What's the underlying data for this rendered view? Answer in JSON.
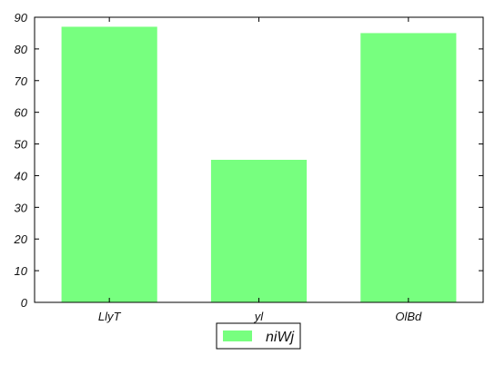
{
  "chart_data": {
    "type": "bar",
    "categories": [
      "LlyT",
      "yl",
      "OlBd"
    ],
    "series": [
      {
        "name": "niWj",
        "values": [
          87,
          45,
          85
        ]
      }
    ],
    "ylim": [
      0,
      90
    ],
    "yticks": [
      0,
      10,
      20,
      30,
      40,
      50,
      60,
      70,
      80,
      90
    ],
    "grid": false,
    "legend_position": "bottom-center",
    "bar_color": "#77ff7f",
    "axis_color": "#000000"
  }
}
